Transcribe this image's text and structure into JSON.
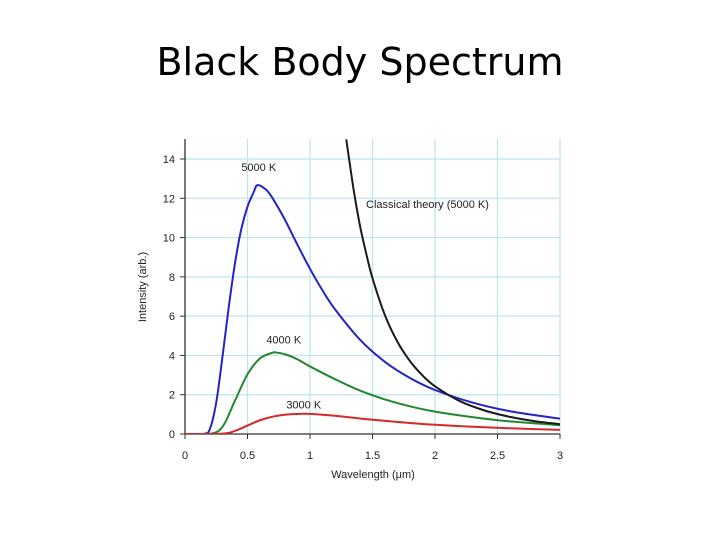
{
  "slide": {
    "title": "Black Body Spectrum"
  },
  "chart_data": {
    "type": "line",
    "xlabel": "Wavelength (μm)",
    "ylabel": "Intensity (arb.)",
    "xlim": [
      0,
      3
    ],
    "ylim": [
      0,
      15
    ],
    "x_ticks": [
      0,
      0.5,
      1,
      1.5,
      2,
      2.5,
      3
    ],
    "x_tick_labels": [
      "0",
      "0.5",
      "1",
      "1.5",
      "2",
      "2.5",
      "3"
    ],
    "y_ticks": [
      0,
      2,
      4,
      6,
      8,
      10,
      12,
      14
    ],
    "y_tick_labels": [
      "0",
      "2",
      "4",
      "6",
      "8",
      "10",
      "12",
      "14"
    ],
    "grid": true,
    "grid_color": "#bfe3ef",
    "series": [
      {
        "name": "5000 K",
        "color": "#2323c8",
        "x": [
          0.15,
          0.2,
          0.25,
          0.3,
          0.35,
          0.4,
          0.45,
          0.5,
          0.55,
          0.58,
          0.65,
          0.7,
          0.8,
          0.9,
          1.0,
          1.1,
          1.2,
          1.4,
          1.6,
          1.8,
          2.0,
          2.3,
          2.6,
          3.0
        ],
        "y": [
          0.01,
          0.27,
          1.61,
          3.94,
          6.46,
          8.7,
          10.42,
          11.57,
          12.32,
          12.67,
          12.43,
          12.01,
          10.9,
          9.63,
          8.41,
          7.31,
          6.35,
          4.8,
          3.67,
          2.85,
          2.24,
          1.6,
          1.16,
          0.78
        ]
      },
      {
        "name": "4000 K",
        "color": "#22882e",
        "x": [
          0.2,
          0.3,
          0.4,
          0.5,
          0.6,
          0.7,
          0.725,
          0.8,
          0.9,
          1.0,
          1.2,
          1.4,
          1.6,
          1.8,
          2.0,
          2.3,
          2.6,
          3.0
        ],
        "y": [
          0.01,
          0.37,
          1.7,
          3.04,
          3.85,
          4.14,
          4.15,
          4.06,
          3.8,
          3.44,
          2.79,
          2.21,
          1.76,
          1.41,
          1.14,
          0.86,
          0.64,
          0.45
        ]
      },
      {
        "name": "3000 K",
        "color": "#d42a2a",
        "x": [
          0.3,
          0.4,
          0.5,
          0.6,
          0.7,
          0.8,
          0.9,
          0.97,
          1.1,
          1.2,
          1.4,
          1.6,
          1.8,
          2.0,
          2.3,
          2.6,
          3.0
        ],
        "y": [
          0.02,
          0.16,
          0.43,
          0.7,
          0.88,
          0.98,
          1.02,
          1.03,
          0.98,
          0.93,
          0.79,
          0.67,
          0.56,
          0.47,
          0.37,
          0.29,
          0.21
        ]
      },
      {
        "name": "Classical theory (5000 K)",
        "color": "#1a1a1a",
        "x": [
          1.29,
          1.35,
          1.4,
          1.45,
          1.5,
          1.6,
          1.7,
          1.8,
          1.9,
          2.0,
          2.2,
          2.4,
          2.6,
          2.8,
          3.0
        ],
        "y": [
          15.0,
          12.4,
          10.6,
          9.18,
          7.93,
          6.04,
          4.69,
          3.71,
          2.98,
          2.43,
          1.67,
          1.19,
          0.87,
          0.65,
          0.5
        ]
      }
    ],
    "annotations": [
      {
        "text": "5000 K",
        "x": 0.59,
        "y": 13.4,
        "series": 0
      },
      {
        "text": "4000 K",
        "x": 0.79,
        "y": 4.6,
        "series": 1
      },
      {
        "text": "3000 K",
        "x": 0.95,
        "y": 1.3,
        "series": 2
      },
      {
        "text": "Classical theory (5000 K)",
        "x": 1.94,
        "y": 11.5,
        "series": 3
      }
    ]
  }
}
